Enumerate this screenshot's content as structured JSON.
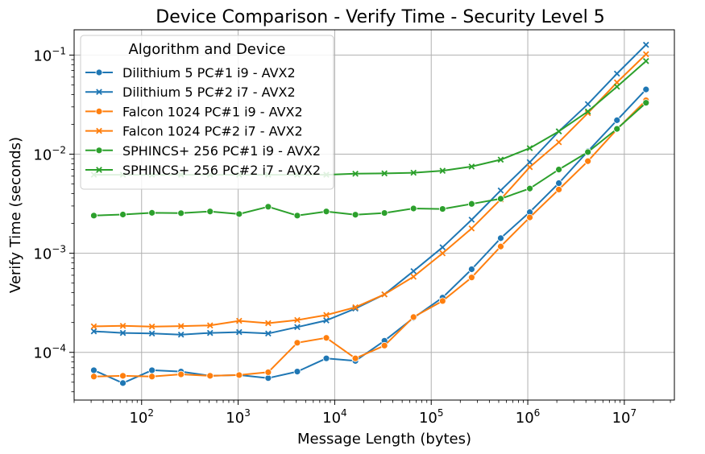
{
  "chart_data": {
    "type": "line",
    "title": "Device Comparison - Verify Time - Security Level 5",
    "xlabel": "Message Length (bytes)",
    "ylabel": "Verify Time (seconds)",
    "xscale": "log",
    "yscale": "log",
    "xlim": [
      20,
      33000000
    ],
    "ylim": [
      3.3e-05,
      0.18
    ],
    "grid": true,
    "legend": {
      "title": "Algorithm and Device",
      "placement": "top-left"
    },
    "x_ticks": [
      {
        "value": 100,
        "base": "10",
        "exp": "2"
      },
      {
        "value": 1000,
        "base": "10",
        "exp": "3"
      },
      {
        "value": 10000,
        "base": "10",
        "exp": "4"
      },
      {
        "value": 100000,
        "base": "10",
        "exp": "5"
      },
      {
        "value": 1000000,
        "base": "10",
        "exp": "6"
      },
      {
        "value": 10000000,
        "base": "10",
        "exp": "7"
      }
    ],
    "y_ticks": [
      {
        "value": 0.0001,
        "base": "10",
        "exp": "−4"
      },
      {
        "value": 0.001,
        "base": "10",
        "exp": "−3"
      },
      {
        "value": 0.01,
        "base": "10",
        "exp": "−2"
      },
      {
        "value": 0.1,
        "base": "10",
        "exp": "−1"
      }
    ],
    "x": [
      32,
      64,
      128,
      256,
      512,
      1024,
      2048,
      4096,
      8192,
      16384,
      32768,
      65536,
      131072,
      262144,
      524288,
      1048576,
      2097152,
      4194304,
      8388608,
      16777216
    ],
    "series": [
      {
        "name": "Dilithium 5 PC#1 i9 - AVX2",
        "color": "#1f77b4",
        "marker": "circle",
        "values": [
          6.6e-05,
          4.9e-05,
          6.6e-05,
          6.4e-05,
          5.8e-05,
          5.9e-05,
          5.5e-05,
          6.4e-05,
          8.7e-05,
          8.2e-05,
          0.000131,
          0.000223,
          0.000357,
          0.00069,
          0.00142,
          0.0026,
          0.0051,
          0.0107,
          0.022,
          0.045
        ]
      },
      {
        "name": "Dilithium 5 PC#2 i7 - AVX2",
        "color": "#1f77b4",
        "marker": "x",
        "values": [
          0.000163,
          0.000157,
          0.000155,
          0.000151,
          0.000157,
          0.00016,
          0.000155,
          0.00018,
          0.00021,
          0.000277,
          0.000385,
          0.00066,
          0.00115,
          0.00218,
          0.0043,
          0.0083,
          0.017,
          0.032,
          0.065,
          0.127
        ]
      },
      {
        "name": "Falcon 1024 PC#1 i9 - AVX2",
        "color": "#ff7f0e",
        "marker": "circle",
        "values": [
          5.7e-05,
          5.8e-05,
          5.7e-05,
          6e-05,
          5.8e-05,
          5.9e-05,
          6.3e-05,
          0.000125,
          0.00014,
          8.7e-05,
          0.000117,
          0.000227,
          0.00033,
          0.00057,
          0.00117,
          0.0023,
          0.0044,
          0.0085,
          0.0178,
          0.035
        ]
      },
      {
        "name": "Falcon 1024 PC#2 i7 - AVX2",
        "color": "#ff7f0e",
        "marker": "x",
        "values": [
          0.000183,
          0.000185,
          0.000182,
          0.000184,
          0.000187,
          0.000208,
          0.000197,
          0.000212,
          0.000238,
          0.000285,
          0.000385,
          0.00058,
          0.001,
          0.00178,
          0.0035,
          0.0074,
          0.0132,
          0.026,
          0.053,
          0.102
        ]
      },
      {
        "name": "SPHINCS+ 256 PC#1 i9 - AVX2",
        "color": "#2ca02c",
        "marker": "circle",
        "values": [
          0.0024,
          0.00246,
          0.00256,
          0.00254,
          0.00264,
          0.00249,
          0.00295,
          0.0024,
          0.00264,
          0.00245,
          0.00255,
          0.00283,
          0.0028,
          0.00315,
          0.00355,
          0.0045,
          0.007,
          0.0105,
          0.018,
          0.033
        ]
      },
      {
        "name": "SPHINCS+ 256 PC#2 i7 - AVX2",
        "color": "#2ca02c",
        "marker": "x",
        "values": [
          0.0062,
          0.0062,
          0.0062,
          0.0062,
          0.0062,
          0.0062,
          0.0062,
          0.0062,
          0.0062,
          0.00635,
          0.0064,
          0.0065,
          0.0068,
          0.0075,
          0.0088,
          0.0115,
          0.017,
          0.027,
          0.048,
          0.087
        ]
      }
    ]
  }
}
